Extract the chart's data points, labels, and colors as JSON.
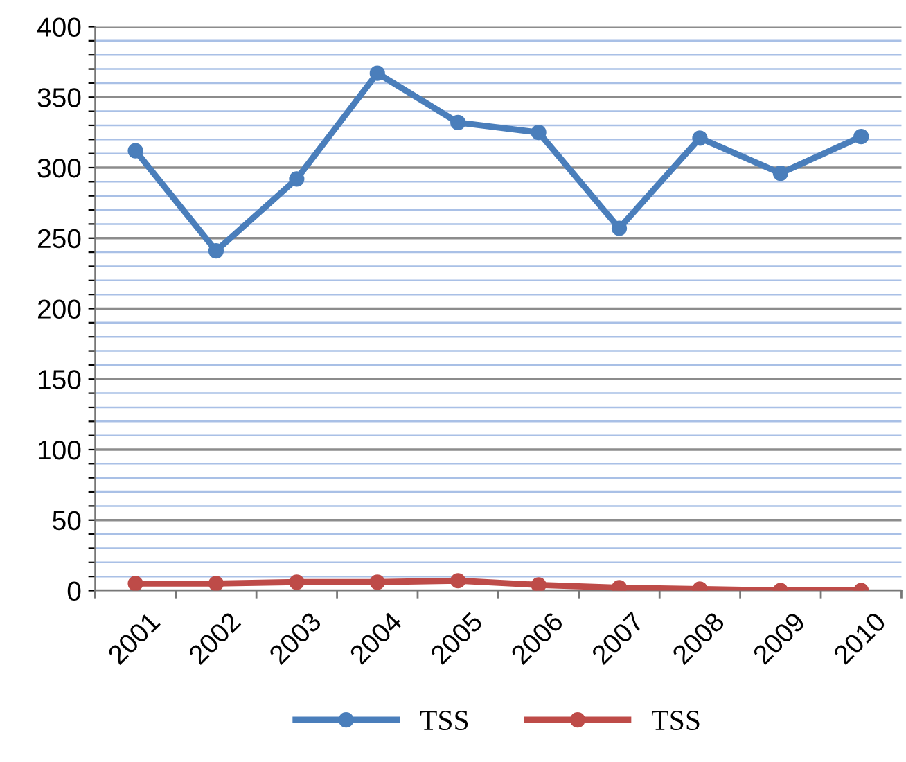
{
  "chart_data": {
    "type": "line",
    "categories": [
      "2001",
      "2002",
      "2003",
      "2004",
      "2005",
      "2006",
      "2007",
      "2008",
      "2009",
      "2010"
    ],
    "series": [
      {
        "name": "TSS",
        "color": "#4a7ebb",
        "values": [
          312,
          241,
          292,
          367,
          332,
          325,
          257,
          321,
          296,
          322
        ]
      },
      {
        "name": "TSS",
        "color": "#be4b48",
        "values": [
          5,
          5,
          6,
          6,
          7,
          4,
          2,
          1,
          0,
          0
        ]
      }
    ],
    "ylim": [
      0,
      400
    ],
    "yticks": [
      0,
      {
        "value": 10,
        "label": null
      },
      {
        "value": 20,
        "label": null
      },
      {
        "value": 30,
        "label": null
      },
      {
        "value": 40,
        "label": null
      },
      50,
      {
        "value": 60,
        "label": null
      },
      {
        "value": 70,
        "label": null
      },
      {
        "value": 80,
        "label": null
      },
      {
        "value": 90,
        "label": null
      },
      100,
      {
        "value": 110,
        "label": null
      },
      {
        "value": 120,
        "label": null
      },
      {
        "value": 130,
        "label": null
      },
      {
        "value": 140,
        "label": null
      },
      150,
      {
        "value": 160,
        "label": null
      },
      {
        "value": 170,
        "label": null
      },
      {
        "value": 180,
        "label": null
      },
      {
        "value": 190,
        "label": null
      },
      200,
      {
        "value": 210,
        "label": null
      },
      {
        "value": 220,
        "label": null
      },
      {
        "value": 230,
        "label": null
      },
      {
        "value": 240,
        "label": null
      },
      250,
      {
        "value": 260,
        "label": null
      },
      {
        "value": 270,
        "label": null
      },
      {
        "value": 280,
        "label": null
      },
      {
        "value": 290,
        "label": null
      },
      300,
      {
        "value": 310,
        "label": null
      },
      {
        "value": 320,
        "label": null
      },
      {
        "value": 330,
        "label": null
      },
      {
        "value": 340,
        "label": null
      },
      350,
      {
        "value": 360,
        "label": null
      },
      {
        "value": 370,
        "label": null
      },
      {
        "value": 380,
        "label": null
      },
      {
        "value": 390,
        "label": null
      },
      400
    ],
    "grid": "y",
    "legend": "bottom",
    "marker": "circle",
    "line_style": "solid"
  }
}
